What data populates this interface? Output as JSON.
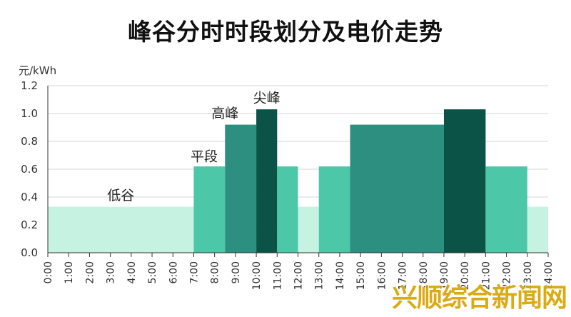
{
  "chart_data": {
    "type": "bar",
    "title": "峰谷分时时段划分及电价走势",
    "ylabel": "元/kWh",
    "xlabel": "",
    "ylim": [
      0,
      1.2
    ],
    "yticks": [
      "0.0",
      "0.2",
      "0.4",
      "0.6",
      "0.8",
      "1.0",
      "1.2"
    ],
    "categories": [
      "0:00",
      "1:00",
      "2:00",
      "3:00",
      "4:00",
      "5:00",
      "6:00",
      "7:00",
      "8:00",
      "9:00",
      "10:00",
      "11:00",
      "12:00",
      "13:00",
      "14:00",
      "15:00",
      "16:00",
      "17:00",
      "18:00",
      "19:00",
      "20:00",
      "21:00",
      "22:00",
      "23:00",
      "24:00"
    ],
    "segments": [
      {
        "start": 0,
        "end": 7,
        "value": 0.33,
        "period": "低谷"
      },
      {
        "start": 7,
        "end": 8.5,
        "value": 0.62,
        "period": "平段"
      },
      {
        "start": 8.5,
        "end": 10,
        "value": 0.92,
        "period": "高峰"
      },
      {
        "start": 10,
        "end": 11,
        "value": 1.03,
        "period": "尖峰"
      },
      {
        "start": 11,
        "end": 12,
        "value": 0.62,
        "period": "平段"
      },
      {
        "start": 12,
        "end": 13,
        "value": 0.33,
        "period": "低谷"
      },
      {
        "start": 13,
        "end": 14.5,
        "value": 0.62,
        "period": "平段"
      },
      {
        "start": 14.5,
        "end": 19,
        "value": 0.92,
        "period": "高峰"
      },
      {
        "start": 19,
        "end": 21,
        "value": 1.03,
        "period": "尖峰"
      },
      {
        "start": 21,
        "end": 23,
        "value": 0.62,
        "period": "平段"
      },
      {
        "start": 23,
        "end": 24,
        "value": 0.33,
        "period": "低谷"
      }
    ],
    "annotations": [
      {
        "text": "低谷",
        "hour": 3.5,
        "value": 0.38
      },
      {
        "text": "平段",
        "hour": 7.5,
        "value": 0.66
      },
      {
        "text": "高峰",
        "hour": 8.5,
        "value": 0.97
      },
      {
        "text": "尖峰",
        "hour": 10.5,
        "value": 1.08
      }
    ],
    "colors": {
      "低谷": "#c6f2e1",
      "平段": "#4cc7a7",
      "高峰": "#2d8f80",
      "尖峰": "#0a5346"
    },
    "grid": true,
    "legend": "none"
  },
  "watermark": "兴顺综合新闻网"
}
